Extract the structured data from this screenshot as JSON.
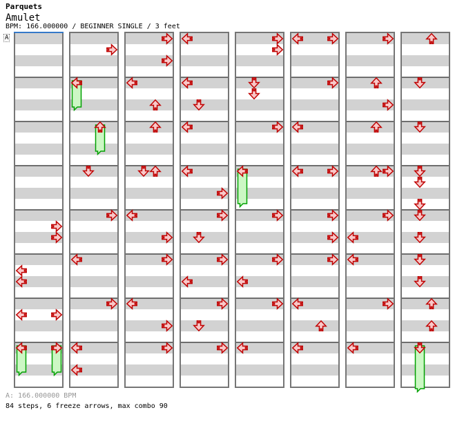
{
  "header": {
    "title": "Parquets",
    "song": "Amulet",
    "info": "BPM: 166.000000 / BEGINNER SINGLE / 3 feet"
  },
  "marker_label": "A",
  "footer": {
    "bpm_line": "A: 166.000000 BPM",
    "summary_line": "84 steps, 6 freeze arrows, max combo 90"
  },
  "colors": {
    "arrow_border": "#c00000",
    "arrow_fill": "#f9c8c8",
    "freeze_border": "#00a000",
    "freeze_fill": "#ccf7c4",
    "stripe_gray": "#d2d2d2",
    "stripe_white": "#ffffff",
    "measure_line": "#6e6e6e",
    "column_border": "#757575",
    "start_line": "#3579c8"
  },
  "chart_data": {
    "type": "step_chart",
    "title": "Amulet",
    "bpm": "166.000000",
    "difficulty": "BEGINNER SINGLE",
    "feet": 3,
    "lanes": [
      "left",
      "down",
      "up",
      "right"
    ],
    "columns": 8,
    "measures_per_column": 8,
    "rows_per_measure": 4,
    "notes": [
      [
        {
          "row": 17,
          "lane": "R"
        },
        {
          "row": 18,
          "lane": "R"
        },
        {
          "row": 21,
          "lane": "L"
        },
        {
          "row": 22,
          "lane": "L"
        },
        {
          "row": 25,
          "lane": "L"
        },
        {
          "row": 25,
          "lane": "R"
        },
        {
          "row": 28,
          "lane": "L",
          "freeze": 3
        },
        {
          "row": 28,
          "lane": "R",
          "freeze": 3
        }
      ],
      [
        {
          "row": 1,
          "lane": "R"
        },
        {
          "row": 4,
          "lane": "L",
          "freeze": 3
        },
        {
          "row": 8,
          "lane": "U",
          "freeze": 3
        },
        {
          "row": 12,
          "lane": "D"
        },
        {
          "row": 16,
          "lane": "R"
        },
        {
          "row": 20,
          "lane": "L"
        },
        {
          "row": 24,
          "lane": "R"
        },
        {
          "row": 28,
          "lane": "L"
        },
        {
          "row": 30,
          "lane": "L"
        }
      ],
      [
        {
          "row": 0,
          "lane": "R"
        },
        {
          "row": 2,
          "lane": "R"
        },
        {
          "row": 4,
          "lane": "L"
        },
        {
          "row": 6,
          "lane": "U"
        },
        {
          "row": 8,
          "lane": "U"
        },
        {
          "row": 12,
          "lane": "D"
        },
        {
          "row": 12,
          "lane": "U"
        },
        {
          "row": 16,
          "lane": "L"
        },
        {
          "row": 18,
          "lane": "R"
        },
        {
          "row": 20,
          "lane": "R"
        },
        {
          "row": 24,
          "lane": "L"
        },
        {
          "row": 26,
          "lane": "R"
        },
        {
          "row": 28,
          "lane": "R"
        }
      ],
      [
        {
          "row": 0,
          "lane": "L"
        },
        {
          "row": 4,
          "lane": "L"
        },
        {
          "row": 6,
          "lane": "D"
        },
        {
          "row": 8,
          "lane": "L"
        },
        {
          "row": 12,
          "lane": "L"
        },
        {
          "row": 14,
          "lane": "R"
        },
        {
          "row": 16,
          "lane": "R"
        },
        {
          "row": 18,
          "lane": "D"
        },
        {
          "row": 20,
          "lane": "R"
        },
        {
          "row": 22,
          "lane": "L"
        },
        {
          "row": 24,
          "lane": "R"
        },
        {
          "row": 26,
          "lane": "D"
        },
        {
          "row": 28,
          "lane": "R"
        }
      ],
      [
        {
          "row": 0,
          "lane": "R"
        },
        {
          "row": 1,
          "lane": "R"
        },
        {
          "row": 4,
          "lane": "D"
        },
        {
          "row": 5,
          "lane": "D"
        },
        {
          "row": 8,
          "lane": "R"
        },
        {
          "row": 12,
          "lane": "L",
          "freeze": 3.75
        },
        {
          "row": 16,
          "lane": "R"
        },
        {
          "row": 20,
          "lane": "R"
        },
        {
          "row": 22,
          "lane": "L"
        },
        {
          "row": 24,
          "lane": "R"
        },
        {
          "row": 28,
          "lane": "L"
        }
      ],
      [
        {
          "row": 0,
          "lane": "L"
        },
        {
          "row": 0,
          "lane": "R"
        },
        {
          "row": 4,
          "lane": "R"
        },
        {
          "row": 8,
          "lane": "L"
        },
        {
          "row": 12,
          "lane": "L"
        },
        {
          "row": 12,
          "lane": "R"
        },
        {
          "row": 16,
          "lane": "R"
        },
        {
          "row": 18,
          "lane": "R"
        },
        {
          "row": 20,
          "lane": "R"
        },
        {
          "row": 24,
          "lane": "L"
        },
        {
          "row": 26,
          "lane": "U"
        },
        {
          "row": 28,
          "lane": "L"
        }
      ],
      [
        {
          "row": 0,
          "lane": "R"
        },
        {
          "row": 4,
          "lane": "U"
        },
        {
          "row": 6,
          "lane": "R"
        },
        {
          "row": 8,
          "lane": "U"
        },
        {
          "row": 12,
          "lane": "U"
        },
        {
          "row": 12,
          "lane": "R"
        },
        {
          "row": 16,
          "lane": "R"
        },
        {
          "row": 18,
          "lane": "L"
        },
        {
          "row": 20,
          "lane": "L"
        },
        {
          "row": 24,
          "lane": "R"
        },
        {
          "row": 28,
          "lane": "L"
        }
      ],
      [
        {
          "row": 0,
          "lane": "U"
        },
        {
          "row": 4,
          "lane": "D"
        },
        {
          "row": 8,
          "lane": "D"
        },
        {
          "row": 12,
          "lane": "D"
        },
        {
          "row": 13,
          "lane": "D"
        },
        {
          "row": 15,
          "lane": "D"
        },
        {
          "row": 16,
          "lane": "D"
        },
        {
          "row": 18,
          "lane": "D"
        },
        {
          "row": 20,
          "lane": "D"
        },
        {
          "row": 22,
          "lane": "D"
        },
        {
          "row": 24,
          "lane": "U"
        },
        {
          "row": 26,
          "lane": "U"
        },
        {
          "row": 28,
          "lane": "D",
          "freeze": 4.5
        }
      ]
    ]
  }
}
